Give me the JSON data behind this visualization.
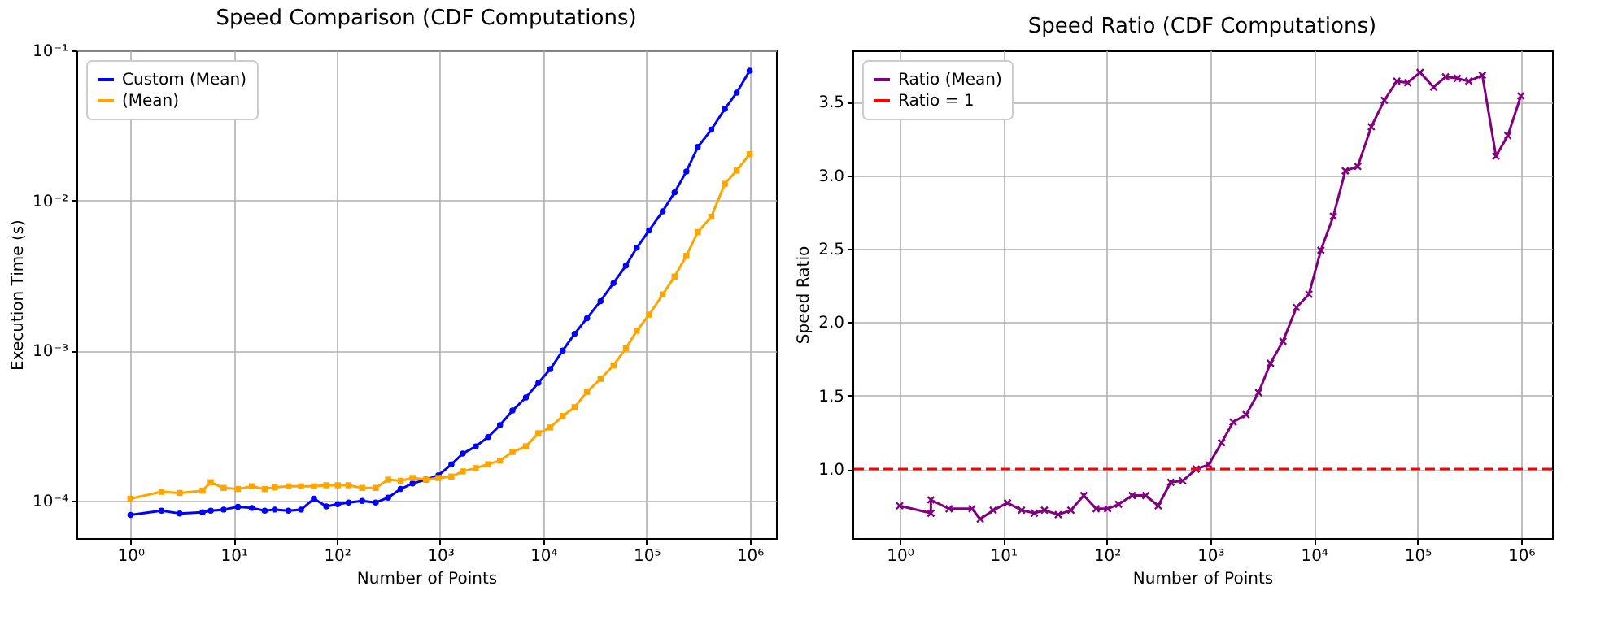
{
  "chart_data": [
    {
      "type": "line",
      "title": "Speed Comparison (CDF Computations)",
      "xlabel": "Number of Points",
      "ylabel": "Execution Time (s)",
      "log": "xy",
      "grid": true,
      "legend": "top left",
      "line_style": "solid",
      "xlim": [
        0.3,
        1800000
      ],
      "ylim": [
        5.6e-05,
        0.1
      ],
      "xticks": [
        {
          "value": 1,
          "label": "10⁰"
        },
        {
          "value": 10,
          "label": "10¹"
        },
        {
          "value": 100,
          "label": "10²"
        },
        {
          "value": 1000,
          "label": "10³"
        },
        {
          "value": 10000,
          "label": "10⁴"
        },
        {
          "value": 100000,
          "label": "10⁵"
        },
        {
          "value": 1000000,
          "label": "10⁶"
        }
      ],
      "yticks": [
        {
          "value": 0.0001,
          "label": "10⁻⁴"
        },
        {
          "value": 0.001,
          "label": "10⁻³"
        },
        {
          "value": 0.01,
          "label": "10⁻²"
        },
        {
          "value": 0.1,
          "label": "10⁻¹"
        }
      ],
      "x": [
        1,
        2,
        3,
        5,
        6,
        8,
        11,
        15,
        20,
        25,
        34,
        45,
        60,
        79,
        102,
        130,
        176,
        238,
        314,
        415,
        541,
        731,
        964,
        1288,
        1660,
        2218,
        2924,
        3811,
        5031,
        6792,
        8970,
        11700,
        15420,
        20140,
        26550,
        35890,
        47960,
        63240,
        80530,
        106200,
        143600,
        187200,
        243800,
        314300,
        424700,
        574400,
        748700,
        1000000
      ],
      "series": [
        {
          "name": "Custom (Mean)",
          "color": "#0000ff",
          "marker": "circle",
          "values": [
            8e-05,
            8.53e-05,
            8.18e-05,
            8.32e-05,
            8.53e-05,
            8.68e-05,
            9.05e-05,
            8.9e-05,
            8.53e-05,
            8.68e-05,
            8.53e-05,
            8.68e-05,
            0.0001025,
            9.12e-05,
            9.43e-05,
            9.67e-05,
            9.9e-05,
            9.67e-05,
            0.0001043,
            0.000119,
            0.0001296,
            0.0001374,
            0.0001469,
            0.0001736,
            0.000205,
            0.000229,
            0.000264,
            0.000317,
            0.000397,
            0.000485,
            0.000608,
            0.00075,
            0.000996,
            0.00129,
            0.00164,
            0.00213,
            0.00281,
            0.00367,
            0.00483,
            0.00631,
            0.00846,
            0.0113,
            0.0156,
            0.0227,
            0.0296,
            0.0407,
            0.0523,
            0.0731
          ]
        },
        {
          "name": "(Mean)",
          "color": "#ffa500",
          "marker": "square",
          "values": [
            0.0001025,
            0.000114,
            0.000112,
            0.000116,
            0.000132,
            0.000121,
            0.000119,
            0.000124,
            0.000119,
            0.000122,
            0.000124,
            0.000124,
            0.000124,
            0.000126,
            0.000126,
            0.000126,
            0.000121,
            0.000121,
            0.0001374,
            0.000135,
            0.000141,
            0.0001374,
            0.000141,
            0.000144,
            0.000156,
            0.000164,
            0.000174,
            0.000184,
            0.00021,
            0.000229,
            0.00028,
            0.000306,
            0.000365,
            0.000418,
            0.000528,
            0.000645,
            0.000794,
            0.00103,
            0.00135,
            0.00173,
            0.00236,
            0.0031,
            0.00427,
            0.00615,
            0.00778,
            0.0129,
            0.0158,
            0.0203
          ]
        }
      ]
    },
    {
      "type": "line",
      "title": "Speed Ratio (CDF Computations)",
      "xlabel": "Number of Points",
      "ylabel": "Speed Ratio",
      "log": "x",
      "grid": true,
      "legend": "top left",
      "line_style": "solid",
      "xlim": [
        0.35,
        2000000
      ],
      "ylim": [
        0.53,
        3.85
      ],
      "xticks": [
        {
          "value": 1,
          "label": "10⁰"
        },
        {
          "value": 10,
          "label": "10¹"
        },
        {
          "value": 100,
          "label": "10²"
        },
        {
          "value": 1000,
          "label": "10³"
        },
        {
          "value": 10000,
          "label": "10⁴"
        },
        {
          "value": 100000,
          "label": "10⁵"
        },
        {
          "value": 1000000,
          "label": "10⁶"
        }
      ],
      "yticks": [
        {
          "value": 1,
          "label": "1.0"
        },
        {
          "value": 1.5,
          "label": "1.5"
        },
        {
          "value": 2,
          "label": "2.0"
        },
        {
          "value": 2.5,
          "label": "2.5"
        },
        {
          "value": 3,
          "label": "3.0"
        },
        {
          "value": 3.5,
          "label": "3.5"
        }
      ],
      "x": [
        1,
        2,
        2,
        3,
        5,
        6,
        8,
        11,
        15,
        20,
        25,
        34,
        45,
        60,
        79,
        102,
        130,
        176,
        238,
        314,
        415,
        541,
        731,
        964,
        1288,
        1660,
        2218,
        2924,
        3811,
        5031,
        6792,
        8970,
        11700,
        15420,
        20140,
        26550,
        35890,
        47960,
        63240,
        80530,
        106200,
        143600,
        187200,
        243800,
        314300,
        424700,
        574400,
        748700,
        1000000
      ],
      "series": [
        {
          "name": "Ratio (Mean)",
          "color": "#800080",
          "marker": "cross",
          "values": [
            0.75,
            0.7,
            0.79,
            0.73,
            0.73,
            0.66,
            0.72,
            0.77,
            0.72,
            0.7,
            0.72,
            0.69,
            0.72,
            0.82,
            0.73,
            0.73,
            0.76,
            0.82,
            0.82,
            0.75,
            0.91,
            0.92,
            1.0,
            1.03,
            1.18,
            1.32,
            1.37,
            1.52,
            1.72,
            1.87,
            2.1,
            2.19,
            2.49,
            2.72,
            3.03,
            3.06,
            3.33,
            3.51,
            3.64,
            3.63,
            3.7,
            3.6,
            3.67,
            3.66,
            3.64,
            3.68,
            3.13,
            3.27,
            3.54
          ]
        }
      ],
      "ref_lines": [
        {
          "axis": "y",
          "value": 1,
          "label": "Ratio = 1",
          "color": "#ff0000",
          "line_style": "dashed"
        }
      ]
    }
  ]
}
